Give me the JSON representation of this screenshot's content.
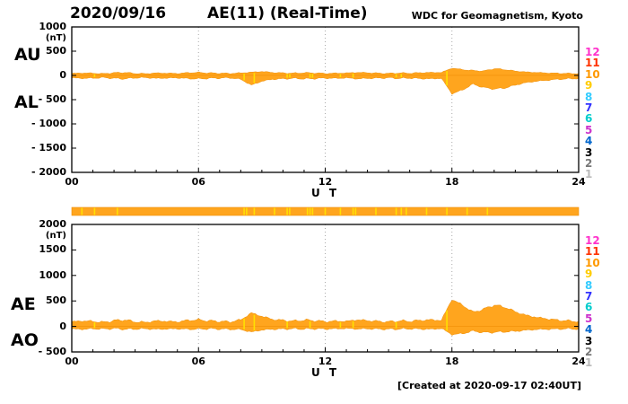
{
  "header": {
    "date": "2020/09/16",
    "title": "AE(11) (Real-Time)",
    "source": "WDC for Geomagnetism, Kyoto"
  },
  "footer": {
    "created": "[Created at 2020-09-17 02:40UT]"
  },
  "colors": {
    "trace": "#ffa51e",
    "trace_edge": "#ef8e06",
    "gap": "#ffe100",
    "grid": "#aaaaaa",
    "frame": "#000000"
  },
  "stations": [
    {
      "n": "12",
      "color": "#ff33cc"
    },
    {
      "n": "11",
      "color": "#ff3300"
    },
    {
      "n": "10",
      "color": "#ff9900"
    },
    {
      "n": "9",
      "color": "#ffcc00"
    },
    {
      "n": "8",
      "color": "#33ccff"
    },
    {
      "n": "7",
      "color": "#3333ff"
    },
    {
      "n": "6",
      "color": "#00cccc"
    },
    {
      "n": "5",
      "color": "#cc33cc"
    },
    {
      "n": "4",
      "color": "#0066cc"
    },
    {
      "n": "3",
      "color": "#000000"
    },
    {
      "n": "2",
      "color": "#777777"
    },
    {
      "n": "1",
      "color": "#bbbbbb"
    }
  ],
  "chart_data": [
    {
      "type": "area",
      "title": "AU / AL auroral electrojet indices",
      "unit": "(nT)",
      "xlabel": "U T",
      "ylim": [
        -2000,
        1000
      ],
      "x_start": 0,
      "x_end": 24,
      "x_step": 0.5,
      "left_labels": [
        "AU",
        "AL"
      ],
      "yticks": [
        {
          "v": 1000,
          "label": "1000"
        },
        {
          "v": 500,
          "label": "500"
        },
        {
          "v": 0,
          "label": "0"
        },
        {
          "v": -500,
          "label": "- 500"
        },
        {
          "v": -1000,
          "label": "- 1000"
        },
        {
          "v": -1500,
          "label": "- 1500"
        },
        {
          "v": -2000,
          "label": "- 2000"
        }
      ],
      "xticks": [
        {
          "t": 0,
          "label": "00"
        },
        {
          "t": 6,
          "label": "06"
        },
        {
          "t": 12,
          "label": "12"
        },
        {
          "t": 18,
          "label": "18"
        },
        {
          "t": 24,
          "label": "24"
        }
      ],
      "series": [
        {
          "name": "AU",
          "jitter": 14,
          "values": [
            40,
            50,
            45,
            35,
            55,
            60,
            40,
            35,
            50,
            45,
            40,
            55,
            60,
            50,
            45,
            40,
            50,
            65,
            80,
            60,
            50,
            45,
            55,
            50,
            40,
            45,
            50,
            60,
            55,
            45,
            40,
            50,
            45,
            55,
            60,
            60,
            150,
            120,
            100,
            90,
            140,
            120,
            90,
            70,
            60,
            50,
            45,
            40,
            40
          ]
        },
        {
          "name": "AL",
          "jitter": 18,
          "values": [
            -50,
            -60,
            -55,
            -45,
            -60,
            -70,
            -50,
            -45,
            -60,
            -55,
            -50,
            -65,
            -70,
            -60,
            -55,
            -50,
            -80,
            -200,
            -120,
            -80,
            -70,
            -60,
            -70,
            -65,
            -55,
            -60,
            -50,
            -70,
            -60,
            -55,
            -50,
            -60,
            -55,
            -65,
            -70,
            -60,
            -380,
            -300,
            -180,
            -250,
            -280,
            -260,
            -200,
            -150,
            -120,
            -100,
            -80,
            -70,
            -60
          ]
        }
      ],
      "gap_marks": [
        0.045,
        0.34,
        0.36,
        0.425,
        0.43,
        0.47,
        0.475,
        0.53,
        0.555,
        0.64,
        0.65,
        0.74
      ]
    },
    {
      "type": "area",
      "title": "AE / AO auroral electrojet indices",
      "unit": "(nT)",
      "xlabel": "U T",
      "ylim": [
        -500,
        2000
      ],
      "x_start": 0,
      "x_end": 24,
      "x_step": 0.5,
      "left_labels": [
        "AE",
        "AO"
      ],
      "yticks": [
        {
          "v": 2000,
          "label": "2000"
        },
        {
          "v": 1500,
          "label": "1500"
        },
        {
          "v": 1000,
          "label": "1000"
        },
        {
          "v": 500,
          "label": "500"
        },
        {
          "v": 0,
          "label": "0"
        },
        {
          "v": -500,
          "label": "- 500"
        }
      ],
      "xticks": [
        {
          "t": 0,
          "label": "00"
        },
        {
          "t": 6,
          "label": "06"
        },
        {
          "t": 12,
          "label": "12"
        },
        {
          "t": 18,
          "label": "18"
        },
        {
          "t": 24,
          "label": "24"
        }
      ],
      "series": [
        {
          "name": "AE",
          "jitter": 28,
          "values": [
            90,
            110,
            100,
            80,
            115,
            130,
            90,
            80,
            110,
            100,
            90,
            120,
            130,
            110,
            100,
            90,
            130,
            265,
            200,
            140,
            120,
            105,
            125,
            115,
            95,
            105,
            100,
            130,
            115,
            100,
            90,
            110,
            100,
            120,
            130,
            120,
            530,
            420,
            280,
            340,
            420,
            380,
            290,
            220,
            180,
            150,
            125,
            110,
            100
          ]
        },
        {
          "name": "AO",
          "jitter": 22,
          "values": [
            -50,
            -55,
            -45,
            -50,
            -40,
            -55,
            -50,
            -45,
            -55,
            -50,
            -45,
            -55,
            -50,
            -45,
            -50,
            -55,
            -60,
            -110,
            -70,
            -55,
            -50,
            -45,
            -50,
            -45,
            -50,
            -45,
            -40,
            -50,
            -45,
            -50,
            -55,
            -50,
            -45,
            -50,
            -55,
            -40,
            -160,
            -140,
            -90,
            -120,
            -115,
            -105,
            -95,
            -75,
            -60,
            -55,
            -50,
            -45,
            -50
          ]
        }
      ],
      "gap_marks": [
        0.045,
        0.34,
        0.36,
        0.425,
        0.47,
        0.53,
        0.555,
        0.64,
        0.74
      ]
    }
  ],
  "activity_bar": {
    "gap_marks": [
      0.02,
      0.045,
      0.09,
      0.34,
      0.345,
      0.36,
      0.4,
      0.425,
      0.43,
      0.465,
      0.47,
      0.475,
      0.5,
      0.53,
      0.555,
      0.56,
      0.6,
      0.64,
      0.65,
      0.66,
      0.7,
      0.74,
      0.78,
      0.82
    ]
  }
}
